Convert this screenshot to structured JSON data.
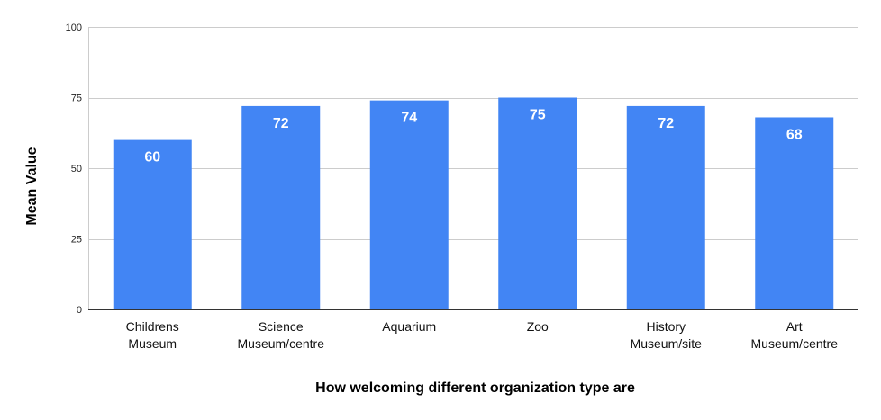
{
  "chart_data": {
    "type": "bar",
    "title": "",
    "xlabel": "How welcoming different organization type are",
    "ylabel": "Mean Value",
    "ylim": [
      0,
      100
    ],
    "yticks": [
      0,
      25,
      50,
      75,
      100
    ],
    "grid": true,
    "categories": [
      [
        "Childrens",
        "Museum"
      ],
      [
        "Science",
        "Museum/centre"
      ],
      [
        "Aquarium"
      ],
      [
        "Zoo"
      ],
      [
        "History",
        "Museum/site"
      ],
      [
        "Art",
        "Museum/centre"
      ]
    ],
    "values": [
      60,
      72,
      74,
      75,
      72,
      68
    ],
    "value_labels": [
      "60",
      "72",
      "74",
      "75",
      "72",
      "68"
    ],
    "bar_color": "#4285f4",
    "label_color": "#ffffff"
  }
}
